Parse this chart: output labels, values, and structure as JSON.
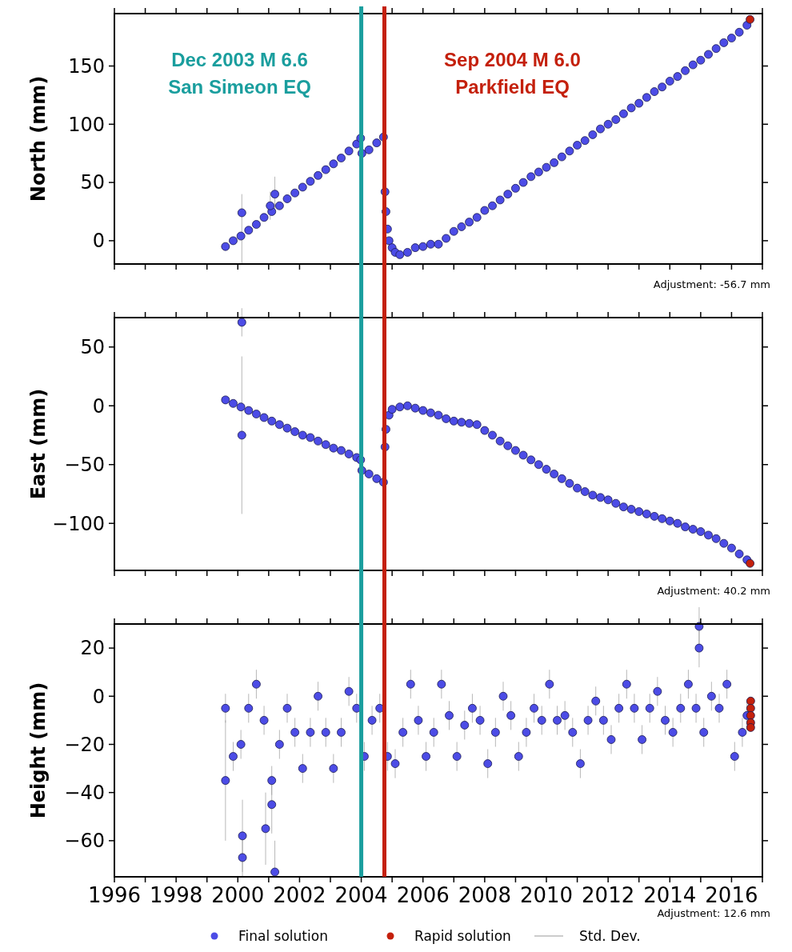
{
  "chart_data": [
    {
      "type": "scatter",
      "ylabel": "North (mm)",
      "xlim": [
        1996,
        2017
      ],
      "ylim": [
        -20,
        195
      ],
      "yticks": [
        0,
        50,
        100,
        150
      ],
      "tick_labels": "y",
      "xticks": [
        1996,
        {
          "value": 1997,
          "label": null
        },
        1998,
        {
          "value": 1999,
          "label": null
        },
        2000,
        {
          "value": 2001,
          "label": null
        },
        2002,
        {
          "value": 2003,
          "label": null
        },
        2004,
        {
          "value": 2005,
          "label": null
        },
        2006,
        {
          "value": 2007,
          "label": null
        },
        2008,
        {
          "value": 2009,
          "label": null
        },
        2010,
        {
          "value": 2011,
          "label": null
        },
        2012,
        {
          "value": 2013,
          "label": null
        },
        2014,
        {
          "value": 2015,
          "label": null
        },
        2016,
        {
          "value": 2017,
          "label": null
        }
      ],
      "series": [
        {
          "color": "#4c4ce6",
          "x": [
            1999.6,
            1999.85,
            2000.1,
            2000.35,
            2000.6,
            2000.85,
            2001.1,
            2001.35,
            2001.6,
            2001.85,
            2002.1,
            2002.35,
            2002.6,
            2002.85,
            2003.1,
            2003.35,
            2003.6,
            2003.85,
            2003.98,
            2004.02,
            2004.25,
            2004.5,
            2004.72,
            2004.77,
            2004.8,
            2004.85,
            2004.9,
            2005.0,
            2005.1,
            2005.25,
            2005.5,
            2005.75,
            2006.0,
            2006.25,
            2006.5,
            2006.75,
            2007.0,
            2007.25,
            2007.5,
            2007.75,
            2008.0,
            2008.25,
            2008.5,
            2008.75,
            2009.0,
            2009.25,
            2009.5,
            2009.75,
            2010.0,
            2010.25,
            2010.5,
            2010.75,
            2011.0,
            2011.25,
            2011.5,
            2011.75,
            2012.0,
            2012.25,
            2012.5,
            2012.75,
            2013.0,
            2013.25,
            2013.5,
            2013.75,
            2014.0,
            2014.25,
            2014.5,
            2014.75,
            2015.0,
            2015.25,
            2015.5,
            2015.75,
            2016.0,
            2016.25,
            2016.5,
            2000.13,
            2001.2,
            2001.05
          ],
          "values": [
            -5,
            0,
            4,
            9,
            14,
            20,
            25,
            30,
            36,
            41,
            46,
            51,
            56,
            61,
            66,
            71,
            77,
            83,
            88,
            75,
            78,
            84,
            89,
            42,
            25,
            10,
            0,
            -6,
            -10,
            -12,
            -10,
            -6,
            -5,
            -3,
            -3,
            2,
            8,
            12,
            16,
            20,
            26,
            30,
            35,
            40,
            45,
            50,
            55,
            59,
            63,
            67,
            72,
            77,
            82,
            86,
            91,
            96,
            100,
            104,
            109,
            114,
            118,
            123,
            128,
            132,
            137,
            141,
            146,
            151,
            155,
            160,
            165,
            170,
            174,
            179,
            185,
            24,
            40,
            30
          ],
          "errors": [
            null,
            null,
            null,
            null,
            null,
            null,
            null,
            null,
            null,
            null,
            null,
            null,
            null,
            null,
            null,
            null,
            null,
            null,
            null,
            null,
            null,
            null,
            null,
            null,
            null,
            null,
            null,
            null,
            null,
            null,
            null,
            null,
            null,
            null,
            null,
            null,
            null,
            null,
            null,
            null,
            null,
            null,
            null,
            null,
            null,
            null,
            null,
            null,
            null,
            null,
            null,
            null,
            null,
            null,
            null,
            null,
            null,
            null,
            null,
            null,
            null,
            null,
            null,
            null,
            null,
            null,
            null,
            null,
            null,
            null,
            null,
            null,
            null,
            null,
            null,
            [
              -20,
              40
            ],
            15,
            12
          ]
        },
        {
          "color": "#c4200c",
          "x": [
            2016.6
          ],
          "values": [
            190
          ]
        }
      ],
      "ref_lines": [
        {
          "axis": "x",
          "value": 2004.0,
          "label": "Dec 2003 M 6.6\nSan Simeon EQ",
          "color": "#1a9e9e"
        },
        {
          "axis": "x",
          "value": 2004.75,
          "label": "Sep 2004 M 6.0\nParkfield EQ",
          "color": "#c4200c"
        }
      ],
      "annotations": [
        "Adjustment: -56.7 mm"
      ]
    },
    {
      "type": "scatter",
      "ylabel": "East (mm)",
      "xlim": [
        1996,
        2017
      ],
      "ylim": [
        -140,
        75
      ],
      "yticks": [
        -100,
        -50,
        0,
        50
      ],
      "tick_labels": "y",
      "xticks": [
        1996,
        {
          "value": 1997,
          "label": null
        },
        1998,
        {
          "value": 1999,
          "label": null
        },
        2000,
        {
          "value": 2001,
          "label": null
        },
        2002,
        {
          "value": 2003,
          "label": null
        },
        2004,
        {
          "value": 2005,
          "label": null
        },
        2006,
        {
          "value": 2007,
          "label": null
        },
        2008,
        {
          "value": 2009,
          "label": null
        },
        2010,
        {
          "value": 2011,
          "label": null
        },
        2012,
        {
          "value": 2013,
          "label": null
        },
        2014,
        {
          "value": 2015,
          "label": null
        },
        2016,
        {
          "value": 2017,
          "label": null
        }
      ],
      "series": [
        {
          "color": "#4c4ce6",
          "x": [
            1999.6,
            1999.85,
            2000.1,
            2000.35,
            2000.6,
            2000.85,
            2001.1,
            2001.35,
            2001.6,
            2001.85,
            2002.1,
            2002.35,
            2002.6,
            2002.85,
            2003.1,
            2003.35,
            2003.6,
            2003.85,
            2003.98,
            2004.02,
            2004.25,
            2004.5,
            2004.72,
            2004.77,
            2004.8,
            2004.9,
            2005.0,
            2005.25,
            2005.5,
            2005.75,
            2006.0,
            2006.25,
            2006.5,
            2006.75,
            2007.0,
            2007.25,
            2007.5,
            2007.75,
            2008.0,
            2008.25,
            2008.5,
            2008.75,
            2009.0,
            2009.25,
            2009.5,
            2009.75,
            2010.0,
            2010.25,
            2010.5,
            2010.75,
            2011.0,
            2011.25,
            2011.5,
            2011.75,
            2012.0,
            2012.25,
            2012.5,
            2012.75,
            2013.0,
            2013.25,
            2013.5,
            2013.75,
            2014.0,
            2014.25,
            2014.5,
            2014.75,
            2015.0,
            2015.25,
            2015.5,
            2015.75,
            2016.0,
            2016.25,
            2016.5,
            2000.13,
            2000.13
          ],
          "values": [
            5,
            2,
            -1,
            -4,
            -7,
            -10,
            -13,
            -16,
            -19,
            -22,
            -25,
            -27,
            -30,
            -33,
            -36,
            -38,
            -41,
            -44,
            -46,
            -55,
            -58,
            -62,
            -65,
            -35,
            -20,
            -8,
            -3,
            -1,
            0,
            -2,
            -4,
            -6,
            -8,
            -11,
            -13,
            -14,
            -15,
            -16,
            -21,
            -25,
            -30,
            -34,
            -38,
            -42,
            -46,
            -50,
            -54,
            -58,
            -62,
            -66,
            -70,
            -73,
            -76,
            -78,
            -80,
            -83,
            -86,
            -88,
            -90,
            -92,
            -94,
            -96,
            -98,
            -100,
            -103,
            -105,
            -107,
            -110,
            -113,
            -117,
            -121,
            -126,
            -131,
            71,
            -25
          ],
          "errors": [
            null,
            null,
            null,
            null,
            null,
            null,
            null,
            null,
            null,
            null,
            null,
            null,
            null,
            null,
            null,
            null,
            null,
            null,
            null,
            null,
            null,
            null,
            null,
            null,
            null,
            null,
            null,
            null,
            null,
            null,
            null,
            null,
            null,
            null,
            null,
            null,
            null,
            null,
            null,
            null,
            null,
            null,
            null,
            null,
            null,
            null,
            null,
            null,
            null,
            null,
            null,
            null,
            null,
            null,
            null,
            null,
            null,
            null,
            null,
            null,
            null,
            null,
            null,
            null,
            null,
            null,
            null,
            null,
            null,
            null,
            null,
            null,
            null,
            12,
            [
              -92,
              42
            ]
          ]
        },
        {
          "color": "#c4200c",
          "x": [
            2016.6
          ],
          "values": [
            -134
          ]
        }
      ],
      "ref_lines": [
        {
          "axis": "x",
          "value": 2004.0,
          "color": "#1a9e9e"
        },
        {
          "axis": "x",
          "value": 2004.75,
          "color": "#c4200c"
        }
      ],
      "annotations": [
        "Adjustment: 40.2 mm"
      ]
    },
    {
      "type": "scatter",
      "ylabel": "Height (mm)",
      "xlim": [
        1996,
        2017
      ],
      "ylim": [
        -75,
        30
      ],
      "yticks": [
        -60,
        -40,
        -20,
        0,
        20
      ],
      "legend": "bottom",
      "xticks": [
        1996,
        {
          "value": 1997,
          "label": null
        },
        1998,
        {
          "value": 1999,
          "label": null
        },
        2000,
        {
          "value": 2001,
          "label": null
        },
        2002,
        {
          "value": 2003,
          "label": null
        },
        2004,
        {
          "value": 2005,
          "label": null
        },
        2006,
        {
          "value": 2007,
          "label": null
        },
        2008,
        {
          "value": 2009,
          "label": null
        },
        2010,
        {
          "value": 2011,
          "label": null
        },
        2012,
        {
          "value": 2013,
          "label": null
        },
        2014,
        {
          "value": 2015,
          "label": null
        },
        2016,
        {
          "value": 2017,
          "label": null
        }
      ],
      "series": [
        {
          "name": "Final solution",
          "color": "#4c4ce6",
          "x": [
            1999.6,
            1999.85,
            2000.1,
            2000.35,
            2000.6,
            2000.85,
            2001.1,
            2001.35,
            2001.6,
            2001.85,
            2002.1,
            2002.35,
            2002.6,
            2002.85,
            2003.1,
            2003.35,
            2003.6,
            2003.85,
            2004.1,
            2004.35,
            2004.6,
            2004.85,
            2005.1,
            2005.35,
            2005.6,
            2005.85,
            2006.1,
            2006.35,
            2006.6,
            2006.85,
            2007.1,
            2007.35,
            2007.6,
            2007.85,
            2008.1,
            2008.35,
            2008.6,
            2008.85,
            2009.1,
            2009.35,
            2009.6,
            2009.85,
            2010.1,
            2010.35,
            2010.6,
            2010.85,
            2011.1,
            2011.35,
            2011.6,
            2011.85,
            2012.1,
            2012.35,
            2012.6,
            2012.85,
            2013.1,
            2013.35,
            2013.6,
            2013.85,
            2014.1,
            2014.35,
            2014.6,
            2014.85,
            2015.1,
            2015.35,
            2015.6,
            2015.85,
            2016.1,
            2016.35,
            2016.5,
            1999.6,
            2000.15,
            2000.15,
            2000.9,
            2001.2,
            2001.1,
            2014.95,
            2014.95
          ],
          "values": [
            -5,
            -25,
            -20,
            -5,
            5,
            -10,
            -35,
            -20,
            -5,
            -15,
            -30,
            -15,
            0,
            -15,
            -30,
            -15,
            2,
            -5,
            -25,
            -10,
            -5,
            -25,
            -28,
            -15,
            5,
            -10,
            -25,
            -15,
            5,
            -8,
            -25,
            -12,
            -5,
            -10,
            -28,
            -15,
            0,
            -8,
            -25,
            -15,
            -5,
            -10,
            5,
            -10,
            -8,
            -15,
            -28,
            -10,
            -2,
            -10,
            -18,
            -5,
            5,
            -5,
            -18,
            -5,
            2,
            -10,
            -15,
            -5,
            5,
            -5,
            -15,
            0,
            -5,
            5,
            -25,
            -15,
            -8,
            -35,
            -58,
            -67,
            -55,
            -73,
            -45,
            29,
            20
          ],
          "errors": [
            6,
            6,
            6,
            6,
            6,
            6,
            6,
            6,
            6,
            6,
            6,
            6,
            6,
            6,
            6,
            6,
            6,
            6,
            6,
            6,
            6,
            6,
            6,
            6,
            6,
            6,
            6,
            6,
            6,
            6,
            6,
            6,
            6,
            6,
            6,
            6,
            6,
            6,
            6,
            6,
            6,
            6,
            6,
            6,
            6,
            6,
            6,
            6,
            6,
            6,
            6,
            6,
            6,
            6,
            6,
            6,
            6,
            6,
            6,
            6,
            6,
            6,
            6,
            6,
            6,
            6,
            6,
            6,
            6,
            25,
            15,
            8,
            15,
            [
              -74,
              -60
            ],
            12,
            8,
            8
          ]
        },
        {
          "name": "Rapid solution",
          "color": "#c4200c",
          "x": [
            2016.62,
            2016.62,
            2016.62,
            2016.62,
            2016.62
          ],
          "values": [
            -2,
            -5,
            -8,
            -11,
            -13
          ]
        }
      ],
      "ref_lines": [
        {
          "axis": "x",
          "value": 2004.0,
          "color": "#1a9e9e"
        },
        {
          "axis": "x",
          "value": 2004.75,
          "color": "#c4200c"
        }
      ],
      "annotations": [
        "Adjustment: 12.6 mm",
        "Std. Dev."
      ]
    }
  ]
}
